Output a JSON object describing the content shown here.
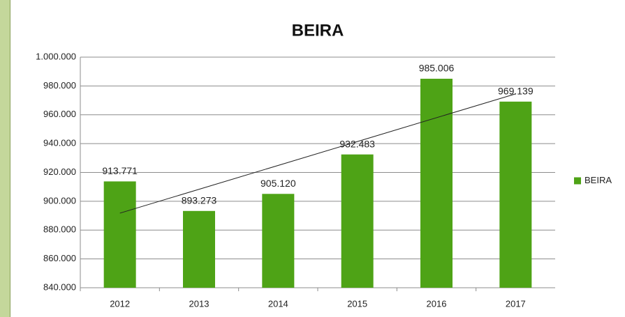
{
  "chart_data": {
    "type": "bar",
    "title": "BEIRA",
    "categories": [
      "2012",
      "2013",
      "2014",
      "2015",
      "2016",
      "2017"
    ],
    "series": [
      {
        "name": "BEIRA",
        "color": "#4ea316",
        "values": [
          913771,
          893273,
          905120,
          932483,
          985006,
          969139
        ],
        "value_labels": [
          "913.771",
          "893.273",
          "905.120",
          "932.483",
          "985.006",
          "969.139"
        ]
      }
    ],
    "ylim": [
      840000,
      1000000
    ],
    "yticks": [
      {
        "value": 840000,
        "label": "840.000"
      },
      {
        "value": 860000,
        "label": "860.000"
      },
      {
        "value": 880000,
        "label": "880.000"
      },
      {
        "value": 900000,
        "label": "900.000"
      },
      {
        "value": 920000,
        "label": "920.000"
      },
      {
        "value": 940000,
        "label": "940.000"
      },
      {
        "value": 960000,
        "label": "960.000"
      },
      {
        "value": 980000,
        "label": "980.000"
      },
      {
        "value": 1000000,
        "label": "1.000.000"
      }
    ],
    "grid": true,
    "legend": "right",
    "trendline": "linear"
  }
}
